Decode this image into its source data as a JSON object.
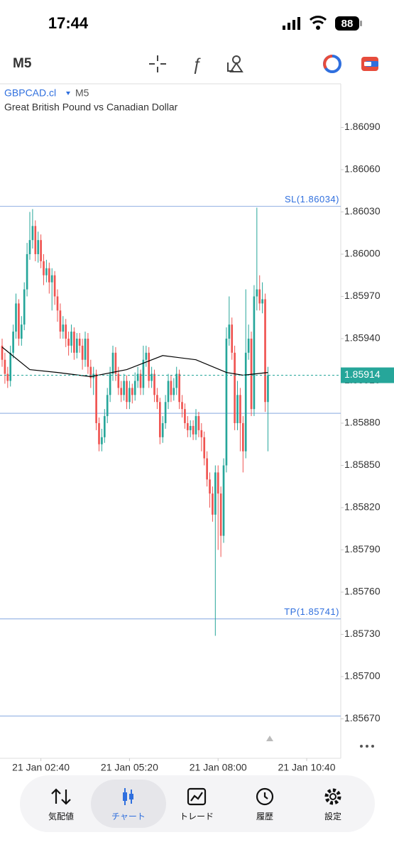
{
  "status_bar": {
    "time": "17:44",
    "battery": "88"
  },
  "toolbar": {
    "timeframe": "M5"
  },
  "chart_data": {
    "type": "candlestick",
    "symbol": "GBPCAD.cl",
    "timeframe": "M5",
    "subtitle": "Great British Pound vs Canadian Dollar",
    "up_color": "#26a69a",
    "down_color": "#ef5350",
    "ohlc": [
      [
        1.85935,
        1.8594,
        1.8592,
        1.85925
      ],
      [
        1.85925,
        1.8593,
        1.85908,
        1.85915
      ],
      [
        1.85915,
        1.8592,
        1.85905,
        1.8591
      ],
      [
        1.8591,
        1.85935,
        1.85906,
        1.8593
      ],
      [
        1.8593,
        1.8595,
        1.85926,
        1.85945
      ],
      [
        1.85945,
        1.85972,
        1.8594,
        1.85965
      ],
      [
        1.85965,
        1.85968,
        1.85935,
        1.8594
      ],
      [
        1.8594,
        1.85956,
        1.85935,
        1.8595
      ],
      [
        1.8595,
        1.8598,
        1.85946,
        1.85975
      ],
      [
        1.85975,
        1.86008,
        1.8597,
        1.86
      ],
      [
        1.86,
        1.8603,
        1.85996,
        1.8601
      ],
      [
        1.8601,
        1.86032,
        1.86004,
        1.8602
      ],
      [
        1.8602,
        1.86024,
        1.85995,
        1.86
      ],
      [
        1.86,
        1.86016,
        1.85994,
        1.8601
      ],
      [
        1.8601,
        1.86014,
        1.8599,
        1.85995
      ],
      [
        1.85995,
        1.86,
        1.85978,
        1.85985
      ],
      [
        1.85985,
        1.85996,
        1.8598,
        1.8599
      ],
      [
        1.8599,
        1.85994,
        1.85972,
        1.8598
      ],
      [
        1.8598,
        1.8599,
        1.8596,
        1.85985
      ],
      [
        1.85985,
        1.85988,
        1.85964,
        1.8597
      ],
      [
        1.8597,
        1.85975,
        1.85952,
        1.8596
      ],
      [
        1.8596,
        1.85965,
        1.8594,
        1.85945
      ],
      [
        1.85945,
        1.85956,
        1.8594,
        1.8595
      ],
      [
        1.8595,
        1.85954,
        1.85934,
        1.8594
      ],
      [
        1.8594,
        1.85945,
        1.85928,
        1.85935
      ],
      [
        1.85935,
        1.8595,
        1.8593,
        1.85945
      ],
      [
        1.85945,
        1.85948,
        1.85925,
        1.8593
      ],
      [
        1.8593,
        1.85944,
        1.85926,
        1.8594
      ],
      [
        1.8594,
        1.85944,
        1.8593,
        1.85935
      ],
      [
        1.85935,
        1.8594,
        1.85918,
        1.85925
      ],
      [
        1.85925,
        1.85945,
        1.8592,
        1.8594
      ],
      [
        1.8594,
        1.85944,
        1.85915,
        1.8592
      ],
      [
        1.8592,
        1.85925,
        1.85905,
        1.85912
      ],
      [
        1.85912,
        1.8592,
        1.859,
        1.85915
      ],
      [
        1.85915,
        1.85918,
        1.85875,
        1.8588
      ],
      [
        1.8588,
        1.85884,
        1.8586,
        1.85865
      ],
      [
        1.85865,
        1.85876,
        1.8586,
        1.8587
      ],
      [
        1.8587,
        1.8589,
        1.85866,
        1.85885
      ],
      [
        1.85885,
        1.85905,
        1.8588,
        1.859
      ],
      [
        1.859,
        1.8592,
        1.85895,
        1.85915
      ],
      [
        1.85915,
        1.85935,
        1.8591,
        1.8593
      ],
      [
        1.8593,
        1.85934,
        1.8591,
        1.85915
      ],
      [
        1.85915,
        1.8592,
        1.859,
        1.85905
      ],
      [
        1.85905,
        1.8591,
        1.85895,
        1.859
      ],
      [
        1.859,
        1.85915,
        1.85896,
        1.8591
      ],
      [
        1.8591,
        1.85914,
        1.8589,
        1.85895
      ],
      [
        1.85895,
        1.8591,
        1.8589,
        1.85905
      ],
      [
        1.85905,
        1.85908,
        1.85894,
        1.859
      ],
      [
        1.859,
        1.85916,
        1.85896,
        1.8591
      ],
      [
        1.8591,
        1.8592,
        1.85905,
        1.85915
      ],
      [
        1.85915,
        1.85918,
        1.859,
        1.85905
      ],
      [
        1.85905,
        1.85935,
        1.859,
        1.85925
      ],
      [
        1.85925,
        1.85935,
        1.8592,
        1.8593
      ],
      [
        1.8593,
        1.85934,
        1.85905,
        1.8591
      ],
      [
        1.8591,
        1.8592,
        1.85905,
        1.85915
      ],
      [
        1.85915,
        1.85918,
        1.85895,
        1.859
      ],
      [
        1.859,
        1.85905,
        1.8589,
        1.85895
      ],
      [
        1.85895,
        1.85898,
        1.85865,
        1.8587
      ],
      [
        1.8587,
        1.85885,
        1.85866,
        1.8588
      ],
      [
        1.8588,
        1.859,
        1.85876,
        1.85895
      ],
      [
        1.85895,
        1.85915,
        1.8589,
        1.8591
      ],
      [
        1.8591,
        1.85914,
        1.85895,
        1.859
      ],
      [
        1.859,
        1.85912,
        1.85896,
        1.85905
      ],
      [
        1.85905,
        1.8592,
        1.859,
        1.85915
      ],
      [
        1.85915,
        1.85918,
        1.8589,
        1.85895
      ],
      [
        1.85895,
        1.859,
        1.85884,
        1.8589
      ],
      [
        1.8589,
        1.85894,
        1.85876,
        1.8588
      ],
      [
        1.8588,
        1.85885,
        1.8587,
        1.85875
      ],
      [
        1.85875,
        1.85882,
        1.8587,
        1.85878
      ],
      [
        1.85878,
        1.85882,
        1.85868,
        1.85872
      ],
      [
        1.85872,
        1.8589,
        1.85868,
        1.85885
      ],
      [
        1.85885,
        1.85888,
        1.8587,
        1.85875
      ],
      [
        1.85875,
        1.8588,
        1.8586,
        1.8587
      ],
      [
        1.8587,
        1.85874,
        1.8585,
        1.85855
      ],
      [
        1.85855,
        1.8586,
        1.85835,
        1.8584
      ],
      [
        1.8584,
        1.85845,
        1.8582,
        1.8583
      ],
      [
        1.8583,
        1.85835,
        1.8581,
        1.85815
      ],
      [
        1.85815,
        1.8585,
        1.85729,
        1.85845
      ],
      [
        1.85845,
        1.8585,
        1.8579,
        1.8583
      ],
      [
        1.8583,
        1.85835,
        1.85785,
        1.858
      ],
      [
        1.858,
        1.85855,
        1.85795,
        1.8585
      ],
      [
        1.8585,
        1.85948,
        1.85845,
        1.8594
      ],
      [
        1.8594,
        1.8597,
        1.85935,
        1.8595
      ],
      [
        1.8595,
        1.85955,
        1.85925,
        1.8593
      ],
      [
        1.8593,
        1.85935,
        1.85875,
        1.8588
      ],
      [
        1.8588,
        1.8591,
        1.85875,
        1.859
      ],
      [
        1.859,
        1.85905,
        1.8586,
        1.8588
      ],
      [
        1.8588,
        1.85885,
        1.85845,
        1.8586
      ],
      [
        1.8586,
        1.85975,
        1.85855,
        1.8593
      ],
      [
        1.8593,
        1.8595,
        1.85925,
        1.8594
      ],
      [
        1.8594,
        1.85945,
        1.85885,
        1.8589
      ],
      [
        1.8589,
        1.85978,
        1.85885,
        1.8597
      ],
      [
        1.8597,
        1.86033,
        1.8596,
        1.85975
      ],
      [
        1.85975,
        1.85985,
        1.8596,
        1.85965
      ],
      [
        1.85965,
        1.8598,
        1.85958,
        1.85968
      ],
      [
        1.85968,
        1.85972,
        1.85888,
        1.85895
      ],
      [
        1.85895,
        1.8592,
        1.8586,
        1.85914
      ]
    ],
    "ma": {
      "color": "#000000",
      "x": [
        0,
        10,
        20,
        32,
        45,
        58,
        70,
        81,
        87,
        96
      ],
      "values": [
        1.85934,
        1.85918,
        1.85916,
        1.85913,
        1.85918,
        1.85928,
        1.85925,
        1.85916,
        1.85914,
        1.85916
      ]
    },
    "xlim": [
      -0.77,
      122.3
    ],
    "xticks": [
      {
        "value": 14,
        "label": "21 Jan 02:40"
      },
      {
        "value": 46,
        "label": "21 Jan 05:20"
      },
      {
        "value": 78,
        "label": "21 Jan 08:00"
      },
      {
        "value": 110,
        "label": "21 Jan 10:40"
      }
    ],
    "ylim": [
      1.85642,
      1.86121
    ],
    "yticks": [
      {
        "value": 1.8567,
        "label": "1.85670"
      },
      {
        "value": 1.857,
        "label": "1.85700"
      },
      {
        "value": 1.8573,
        "label": "1.85730"
      },
      {
        "value": 1.8576,
        "label": "1.85760"
      },
      {
        "value": 1.8579,
        "label": "1.85790"
      },
      {
        "value": 1.8582,
        "label": "1.85820"
      },
      {
        "value": 1.8585,
        "label": "1.85850"
      },
      {
        "value": 1.8588,
        "label": "1.85880"
      },
      {
        "value": 1.8591,
        "label": "1.85910"
      },
      {
        "value": 1.8594,
        "label": "1.85940"
      },
      {
        "value": 1.8597,
        "label": "1.85970"
      },
      {
        "value": 1.86,
        "label": "1.86000"
      },
      {
        "value": 1.8603,
        "label": "1.86030"
      },
      {
        "value": 1.8606,
        "label": "1.86060"
      },
      {
        "value": 1.8609,
        "label": "1.86090"
      }
    ],
    "levels": [
      {
        "value": 1.86034,
        "label": "SL(1.86034)"
      },
      {
        "value": 1.85741,
        "label": "TP(1.85741)"
      },
      {
        "value": 1.85887
      },
      {
        "value": 1.85672
      }
    ],
    "level_color": "#9db8e6",
    "last": 1.85914,
    "last_color": "#26a69a"
  },
  "tabs": [
    "気配値",
    "チャート",
    "トレード",
    "履歴",
    "設定"
  ],
  "active_tab": 1
}
